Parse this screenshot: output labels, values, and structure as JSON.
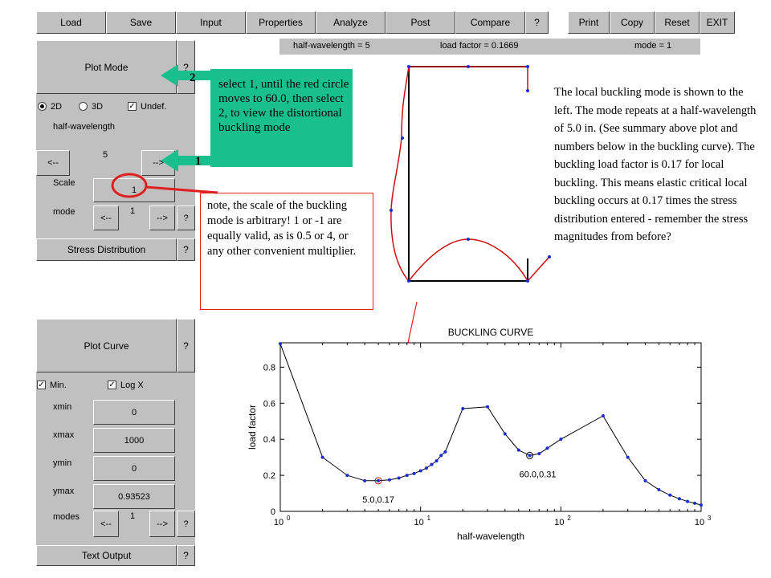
{
  "menu": {
    "load": "Load",
    "save": "Save",
    "input": "Input",
    "properties": "Properties",
    "analyze": "Analyze",
    "post": "Post",
    "compare": "Compare",
    "help": "?",
    "print": "Print",
    "copy": "Copy",
    "reset": "Reset",
    "exit": "EXIT"
  },
  "status": {
    "half_wavelength": "half-wavelength = 5",
    "load_factor": "load factor = 0.1669",
    "mode": "mode = 1"
  },
  "mode_panel": {
    "plot_mode": "Plot Mode",
    "help": "?",
    "opt_2d": "2D",
    "opt_3d": "3D",
    "undef": "Undef.",
    "half_wavelength_label": "half-wavelength",
    "hw_prev": "<--",
    "hw_value": "5",
    "hw_next": "-->",
    "scale_label": "Scale",
    "scale_value": "1",
    "mode_label": "mode",
    "mode_prev": "<--",
    "mode_value": "1",
    "mode_next": "-->",
    "stress_distribution": "Stress Distribution"
  },
  "curve_panel": {
    "plot_curve": "Plot Curve",
    "help": "?",
    "min": "Min.",
    "logx": "Log X",
    "xmin_label": "xmin",
    "xmin_value": "0",
    "xmax_label": "xmax",
    "xmax_value": "1000",
    "ymin_label": "ymin",
    "ymin_value": "0",
    "ymax_label": "ymax",
    "ymax_value": "0.93523",
    "modes_label": "modes",
    "modes_prev": "<--",
    "modes_value": "1",
    "modes_next": "-->",
    "text_output": "Text Output"
  },
  "annotations": {
    "step_two": "2",
    "step_one": "1",
    "green_note": "select 1, until the red circle moves to 60.0, then select 2, to view the distortional buckling mode",
    "scale_note": "note, the scale of the buckling mode is arbitrary! 1 or -1 are equally valid, as is 0.5 or 4, or any other convenient multiplier.",
    "description": "The local buckling mode is shown to the left. The mode repeats at a half-wavelength of 5.0 in. (See summary above plot and numbers below in the buckling curve). The buckling load factor is 0.17 for local buckling. This means elastic critical local buckling occurs at 0.17 times the stress distribution entered - remember the stress magnitudes from before?"
  },
  "colors": {
    "green_callout": "#19c08e",
    "red_highlight": "#e02020",
    "curve_points": "#1a2ad8"
  },
  "chart_data": {
    "type": "line",
    "title": "BUCKLING CURVE",
    "xlabel": "half-wavelength",
    "ylabel": "load factor",
    "x_scale": "log",
    "xlim": [
      1,
      1000
    ],
    "ylim": [
      0,
      0.93523
    ],
    "yticks": [
      "0",
      "0.2",
      "0.4",
      "0.6",
      "0.8"
    ],
    "xticks": [
      {
        "base": "10",
        "exp": "0"
      },
      {
        "base": "10",
        "exp": "1"
      },
      {
        "base": "10",
        "exp": "2"
      },
      {
        "base": "10",
        "exp": "3"
      }
    ],
    "x": [
      1,
      2,
      3,
      4,
      5,
      6,
      7,
      8,
      9,
      10,
      11,
      12,
      13,
      14,
      15,
      20,
      30,
      40,
      50,
      60,
      70,
      80,
      100,
      200,
      300,
      400,
      500,
      600,
      700,
      800,
      900,
      1000
    ],
    "y": [
      0.93,
      0.3,
      0.2,
      0.17,
      0.17,
      0.175,
      0.185,
      0.2,
      0.21,
      0.225,
      0.24,
      0.26,
      0.28,
      0.31,
      0.33,
      0.57,
      0.58,
      0.43,
      0.34,
      0.31,
      0.32,
      0.35,
      0.4,
      0.53,
      0.3,
      0.17,
      0.12,
      0.09,
      0.07,
      0.055,
      0.045,
      0.035
    ],
    "highlighted": [
      {
        "x": 5.0,
        "y": 0.17,
        "label": "5.0,0.17"
      },
      {
        "x": 60.0,
        "y": 0.31,
        "label": "60.0,0.31"
      }
    ]
  }
}
